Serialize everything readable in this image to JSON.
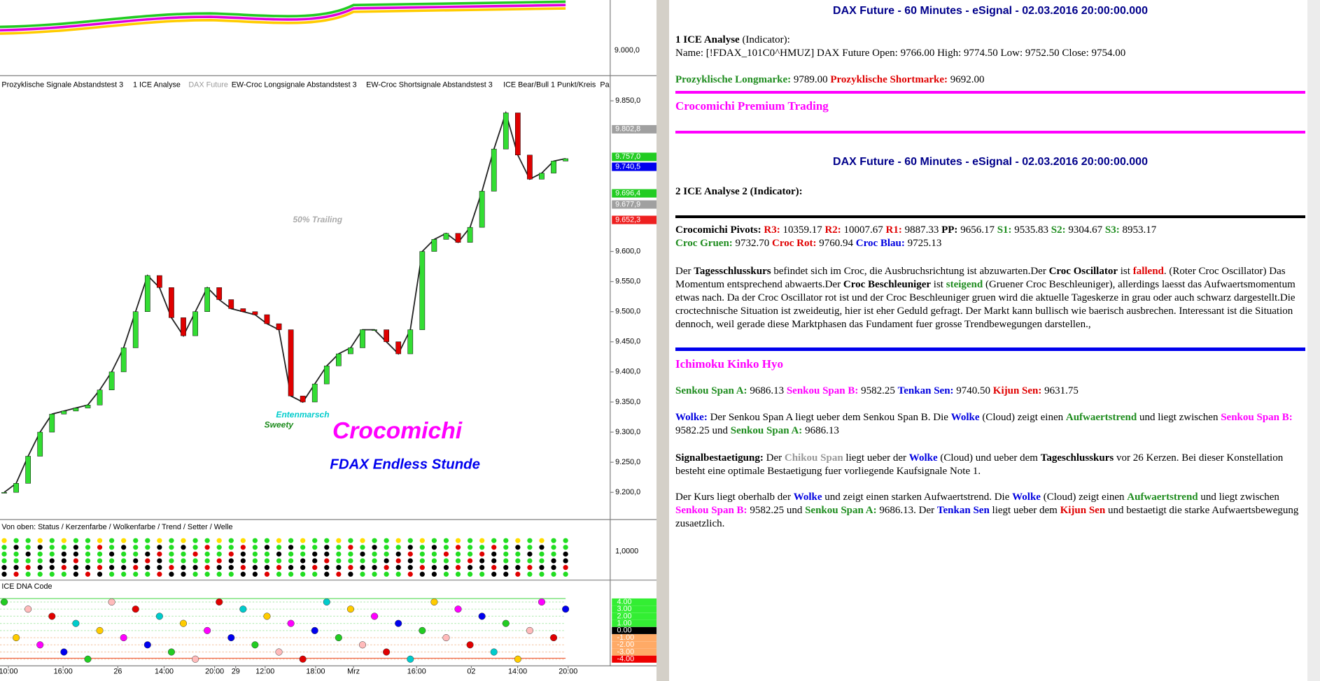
{
  "chart": {
    "top_panel": {
      "yticks": [
        {
          "value": 9000,
          "label": "9.000,0"
        }
      ]
    },
    "price_panel": {
      "legend": [
        "Prozyklische Signale Abstandstest 3",
        "1 ICE Analyse",
        "DAX Future",
        "EW-Croc Longsignale Abstandstest 3",
        "EW-Croc Shortsignale Abstandstest 3",
        "ICE Bear/Bull 1 Punkt/Kreis",
        "Pa"
      ],
      "ylim": [
        9159,
        9889
      ],
      "yticks": [
        {
          "value": 9850,
          "label": "9.850,0"
        },
        {
          "value": 9600,
          "label": "9.600,0"
        },
        {
          "value": 9550,
          "label": "9.550,0"
        },
        {
          "value": 9500,
          "label": "9.500,0"
        },
        {
          "value": 9450,
          "label": "9.450,0"
        },
        {
          "value": 9400,
          "label": "9.400,0"
        },
        {
          "value": 9350,
          "label": "9.350,0"
        },
        {
          "value": 9300,
          "label": "9.300,0"
        },
        {
          "value": 9250,
          "label": "9.250,0"
        },
        {
          "value": 9200,
          "label": "9.200,0"
        }
      ],
      "price_tags": [
        {
          "value": 9802.8,
          "label": "9.802,8",
          "color": "#a0a0a0"
        },
        {
          "value": 9757.0,
          "label": "9.757,0",
          "color": "#22cc22"
        },
        {
          "value": 9740.5,
          "label": "9.740,5",
          "color": "#0000ee"
        },
        {
          "value": 9696.4,
          "label": "9.696,4",
          "color": "#22cc22"
        },
        {
          "value": 9677.9,
          "label": "9.677,9",
          "color": "#a0a0a0"
        },
        {
          "value": 9652.3,
          "label": "9.652,3",
          "color": "#ee2020"
        }
      ],
      "close": [
        9200,
        9215,
        9260,
        9300,
        9330,
        9335,
        9340,
        9345,
        9370,
        9400,
        9440,
        9500,
        9560,
        9540,
        9490,
        9460,
        9500,
        9540,
        9520,
        9505,
        9500,
        9495,
        9480,
        9470,
        9360,
        9350,
        9380,
        9410,
        9430,
        9440,
        9470,
        9470,
        9450,
        9430,
        9470,
        9600,
        9620,
        9630,
        9615,
        9640,
        9700,
        9770,
        9830,
        9760,
        9720,
        9730,
        9750,
        9754
      ],
      "annotations": [
        "50% Trailing",
        "Entenmarsch",
        "Sweety",
        "Crocomichi",
        "FDAX Endless Stunde"
      ]
    },
    "status_panel": {
      "title": "Von oben: Status / Kerzenfarbe / Wolkenfarbe / Trend / Setter / Welle",
      "yticks": [
        {
          "value": 1,
          "label": "1,0000"
        }
      ]
    },
    "dna_panel": {
      "title": "ICE DNA Code",
      "levels": [
        {
          "value": 4,
          "label": "4.00"
        },
        {
          "value": 3,
          "label": "3.00"
        },
        {
          "value": 2,
          "label": "2.00"
        },
        {
          "value": 1,
          "label": "1.00"
        },
        {
          "value": 0,
          "label": "0.00"
        },
        {
          "value": -1,
          "label": "-1.00"
        },
        {
          "value": -2,
          "label": "-2.00"
        },
        {
          "value": -3,
          "label": "-3.00"
        },
        {
          "value": -4,
          "label": "-4.00"
        }
      ]
    },
    "x_labels": [
      "10:00",
      "16:00",
      "26",
      "14:00",
      "20:00",
      "29",
      "12:00",
      "18:00",
      "Mrz",
      "16:00",
      "02",
      "14:00",
      "20:00"
    ]
  },
  "report": {
    "title1": "DAX Future - 60 Minutes - eSignal - 02.03.2016 20:00:00.000",
    "indicator1": {
      "runs": [
        {
          "text": "1 ICE Analyse",
          "bold": true
        },
        " (Indicator):"
      ]
    },
    "name_line": {
      "runs": [
        "Name: [!FDAX_101C0^HMUZ] DAX Future Open: 9766.00 High: 9774.50 Low: 9752.50 Close: 9754.00"
      ]
    },
    "marks": {
      "runs": [
        {
          "text": "Prozyklische Longmarke:",
          "color": "#1e8c1e",
          "bold": true
        },
        " 9789.00 ",
        {
          "text": "Prozyklische Shortmarke:",
          "color": "#e00000",
          "bold": true
        },
        " 9692.00"
      ]
    },
    "premium": "Crocomichi Premium Trading",
    "title2": "DAX Future - 60 Minutes - eSignal - 02.03.2016 20:00:00.000",
    "indicator2": {
      "runs": [
        {
          "text": "2 ICE Analyse 2 (Indicator):",
          "bold": true
        }
      ]
    },
    "pivots": {
      "runs": [
        {
          "text": "Crocomichi Pivots:",
          "bold": true
        },
        " ",
        {
          "text": "R3:",
          "color": "#e00000",
          "bold": true
        },
        " 10359.17 ",
        {
          "text": "R2:",
          "color": "#e00000",
          "bold": true
        },
        " 10007.67 ",
        {
          "text": "R1:",
          "color": "#e00000",
          "bold": true
        },
        " 9887.33 ",
        {
          "text": "PP:",
          "bold": true
        },
        " 9656.17 ",
        {
          "text": "S1:",
          "color": "#1e8c1e",
          "bold": true
        },
        " 9535.83 ",
        {
          "text": "S2:",
          "color": "#1e8c1e",
          "bold": true
        },
        " 9304.67 ",
        {
          "text": "S3:",
          "color": "#1e8c1e",
          "bold": true
        },
        " 8953.17"
      ]
    },
    "croc_lines": {
      "runs": [
        {
          "text": "Croc Gruen:",
          "color": "#1e8c1e",
          "bold": true
        },
        " 9732.70 ",
        {
          "text": "Croc Rot:",
          "color": "#e00000",
          "bold": true
        },
        " 9760.94 ",
        {
          "text": "Croc Blau:",
          "color": "#0000e0",
          "bold": true
        },
        " 9725.13"
      ]
    },
    "daily": {
      "runs": [
        "Der ",
        {
          "text": "Tagesschlusskurs",
          "bold": true
        },
        " befindet sich im Croc, die Ausbruchsrichtung ist abzuwarten.Der ",
        {
          "text": "Croc Oscillator",
          "bold": true
        },
        " ist ",
        {
          "text": "fallend",
          "color": "#e00000",
          "bold": true
        },
        ". (Roter Croc Oscillator) Das Momentum entsprechend abwaerts.Der ",
        {
          "text": "Croc Beschleuniger",
          "bold": true
        },
        " ist ",
        {
          "text": "steigend",
          "color": "#1e8c1e",
          "bold": true
        },
        " (Gruener Croc Beschleuniger), allerdings laesst das Aufwaertsmomentum etwas nach. Da der Croc Oscillator rot ist und der Croc Beschleuniger gruen wird die aktuelle Tageskerze in grau oder auch schwarz dargestellt.Die croctechnische Situation ist zweideutig, hier ist eher Geduld gefragt. Der Markt kann bullisch wie baerisch ausbrechen. Interessant ist die Situation dennoch, weil gerade diese Marktphasen das Fundament fuer grosse Trendbewegungen darstellen.,"
      ]
    },
    "ichimoku": "Ichimoku Kinko Hyo",
    "senkou": {
      "runs": [
        {
          "text": "Senkou Span A:",
          "color": "#1e8c1e",
          "bold": true
        },
        " 9686.13 ",
        {
          "text": "Senkou Span B:",
          "color": "#ff00ff",
          "bold": true
        },
        " 9582.25 ",
        {
          "text": "Tenkan Sen:",
          "color": "#0000e0",
          "bold": true
        },
        " 9740.50 ",
        {
          "text": "Kijun Sen:",
          "color": "#e00000",
          "bold": true
        },
        " 9631.75"
      ]
    },
    "wolke": {
      "runs": [
        {
          "text": "Wolke:",
          "color": "#0000e0",
          "bold": true
        },
        " Der Senkou Span A liegt ueber dem Senkou Span B. Die ",
        {
          "text": "Wolke",
          "color": "#0000e0",
          "bold": true
        },
        " (Cloud) zeigt einen ",
        {
          "text": "Aufwaertstrend",
          "color": "#1e8c1e",
          "bold": true
        },
        " und liegt zwischen ",
        {
          "text": "Senkou Span B:",
          "color": "#ff00ff",
          "bold": true
        },
        " 9582.25 und ",
        {
          "text": "Senkou Span A:",
          "color": "#1e8c1e",
          "bold": true
        },
        " 9686.13"
      ]
    },
    "signal": {
      "runs": [
        {
          "text": "Signalbestaetigung:",
          "bold": true
        },
        " Der ",
        {
          "text": "Chikou Span",
          "color": "#999999",
          "bold": true
        },
        " liegt ueber der ",
        {
          "text": "Wolke",
          "color": "#0000e0",
          "bold": true
        },
        " (Cloud) und ueber dem ",
        {
          "text": "Tageschlusskurs",
          "bold": true
        },
        " vor 26 Kerzen. Bei dieser Konstellation besteht eine optimale Bestaetigung fuer vorliegende Kaufsignale Note 1."
      ]
    },
    "trend": {
      "runs": [
        "Der Kurs liegt oberhalb der ",
        {
          "text": "Wolke",
          "color": "#0000e0",
          "bold": true
        },
        " und zeigt einen starken Aufwaertstrend. Die ",
        {
          "text": "Wolke",
          "color": "#0000e0",
          "bold": true
        },
        " (Cloud) zeigt einen ",
        {
          "text": "Aufwaertstrend",
          "color": "#1e8c1e",
          "bold": true
        },
        " und liegt zwischen ",
        {
          "text": "Senkou Span B:",
          "color": "#ff00ff",
          "bold": true
        },
        " 9582.25 und ",
        {
          "text": "Senkou Span A:",
          "color": "#1e8c1e",
          "bold": true
        },
        " 9686.13. Der ",
        {
          "text": "Tenkan Sen",
          "color": "#0000e0",
          "bold": true
        },
        " liegt ueber dem ",
        {
          "text": "Kijun Sen",
          "color": "#e00000",
          "bold": true
        },
        " und bestaetigt die starke Aufwaertsbewegung zusaetzlich."
      ]
    }
  }
}
